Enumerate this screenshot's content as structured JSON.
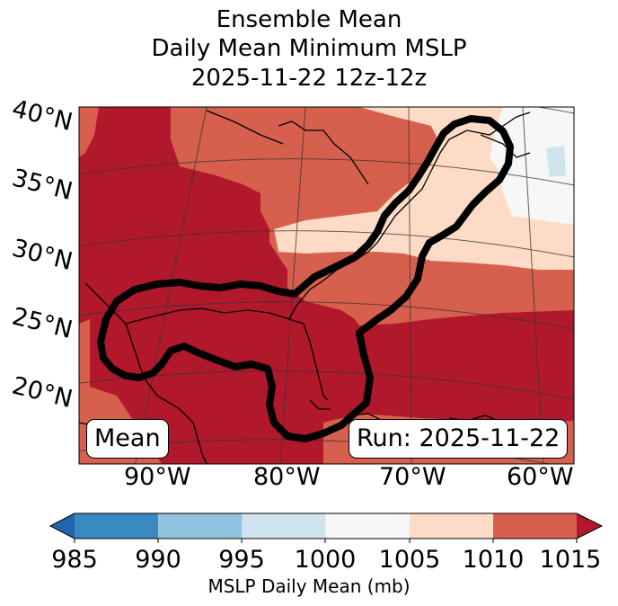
{
  "title": {
    "line1": "Ensemble Mean",
    "line2": "Daily Mean Minimum MSLP",
    "line3": "2025-11-22 12z-12z"
  },
  "map": {
    "lat_labels": [
      "40°N",
      "35°N",
      "30°N",
      "25°N",
      "20°N"
    ],
    "lon_labels": [
      "90°W",
      "80°W",
      "70°W",
      "60°W"
    ],
    "mean_box": "Mean",
    "run_box": "Run: 2025-11-22"
  },
  "colorbar": {
    "label": "MSLP Daily Mean (mb)",
    "ticks": [
      "985",
      "990",
      "995",
      "1000",
      "1005",
      "1010",
      "1015"
    ],
    "colors": [
      "#3a89bf",
      "#90c3de",
      "#d0e4f0",
      "#f7f7f7",
      "#fddbc7",
      "#d6604d",
      "#b2182b"
    ],
    "under_color": "#2166ac",
    "over_color": "#b2182b"
  },
  "fill_colors": {
    "c1015": "#b2182b",
    "c1010": "#d6604d",
    "c1005": "#fddbc7",
    "c1000": "#f7f7f7",
    "c995": "#d0e4f0"
  }
}
